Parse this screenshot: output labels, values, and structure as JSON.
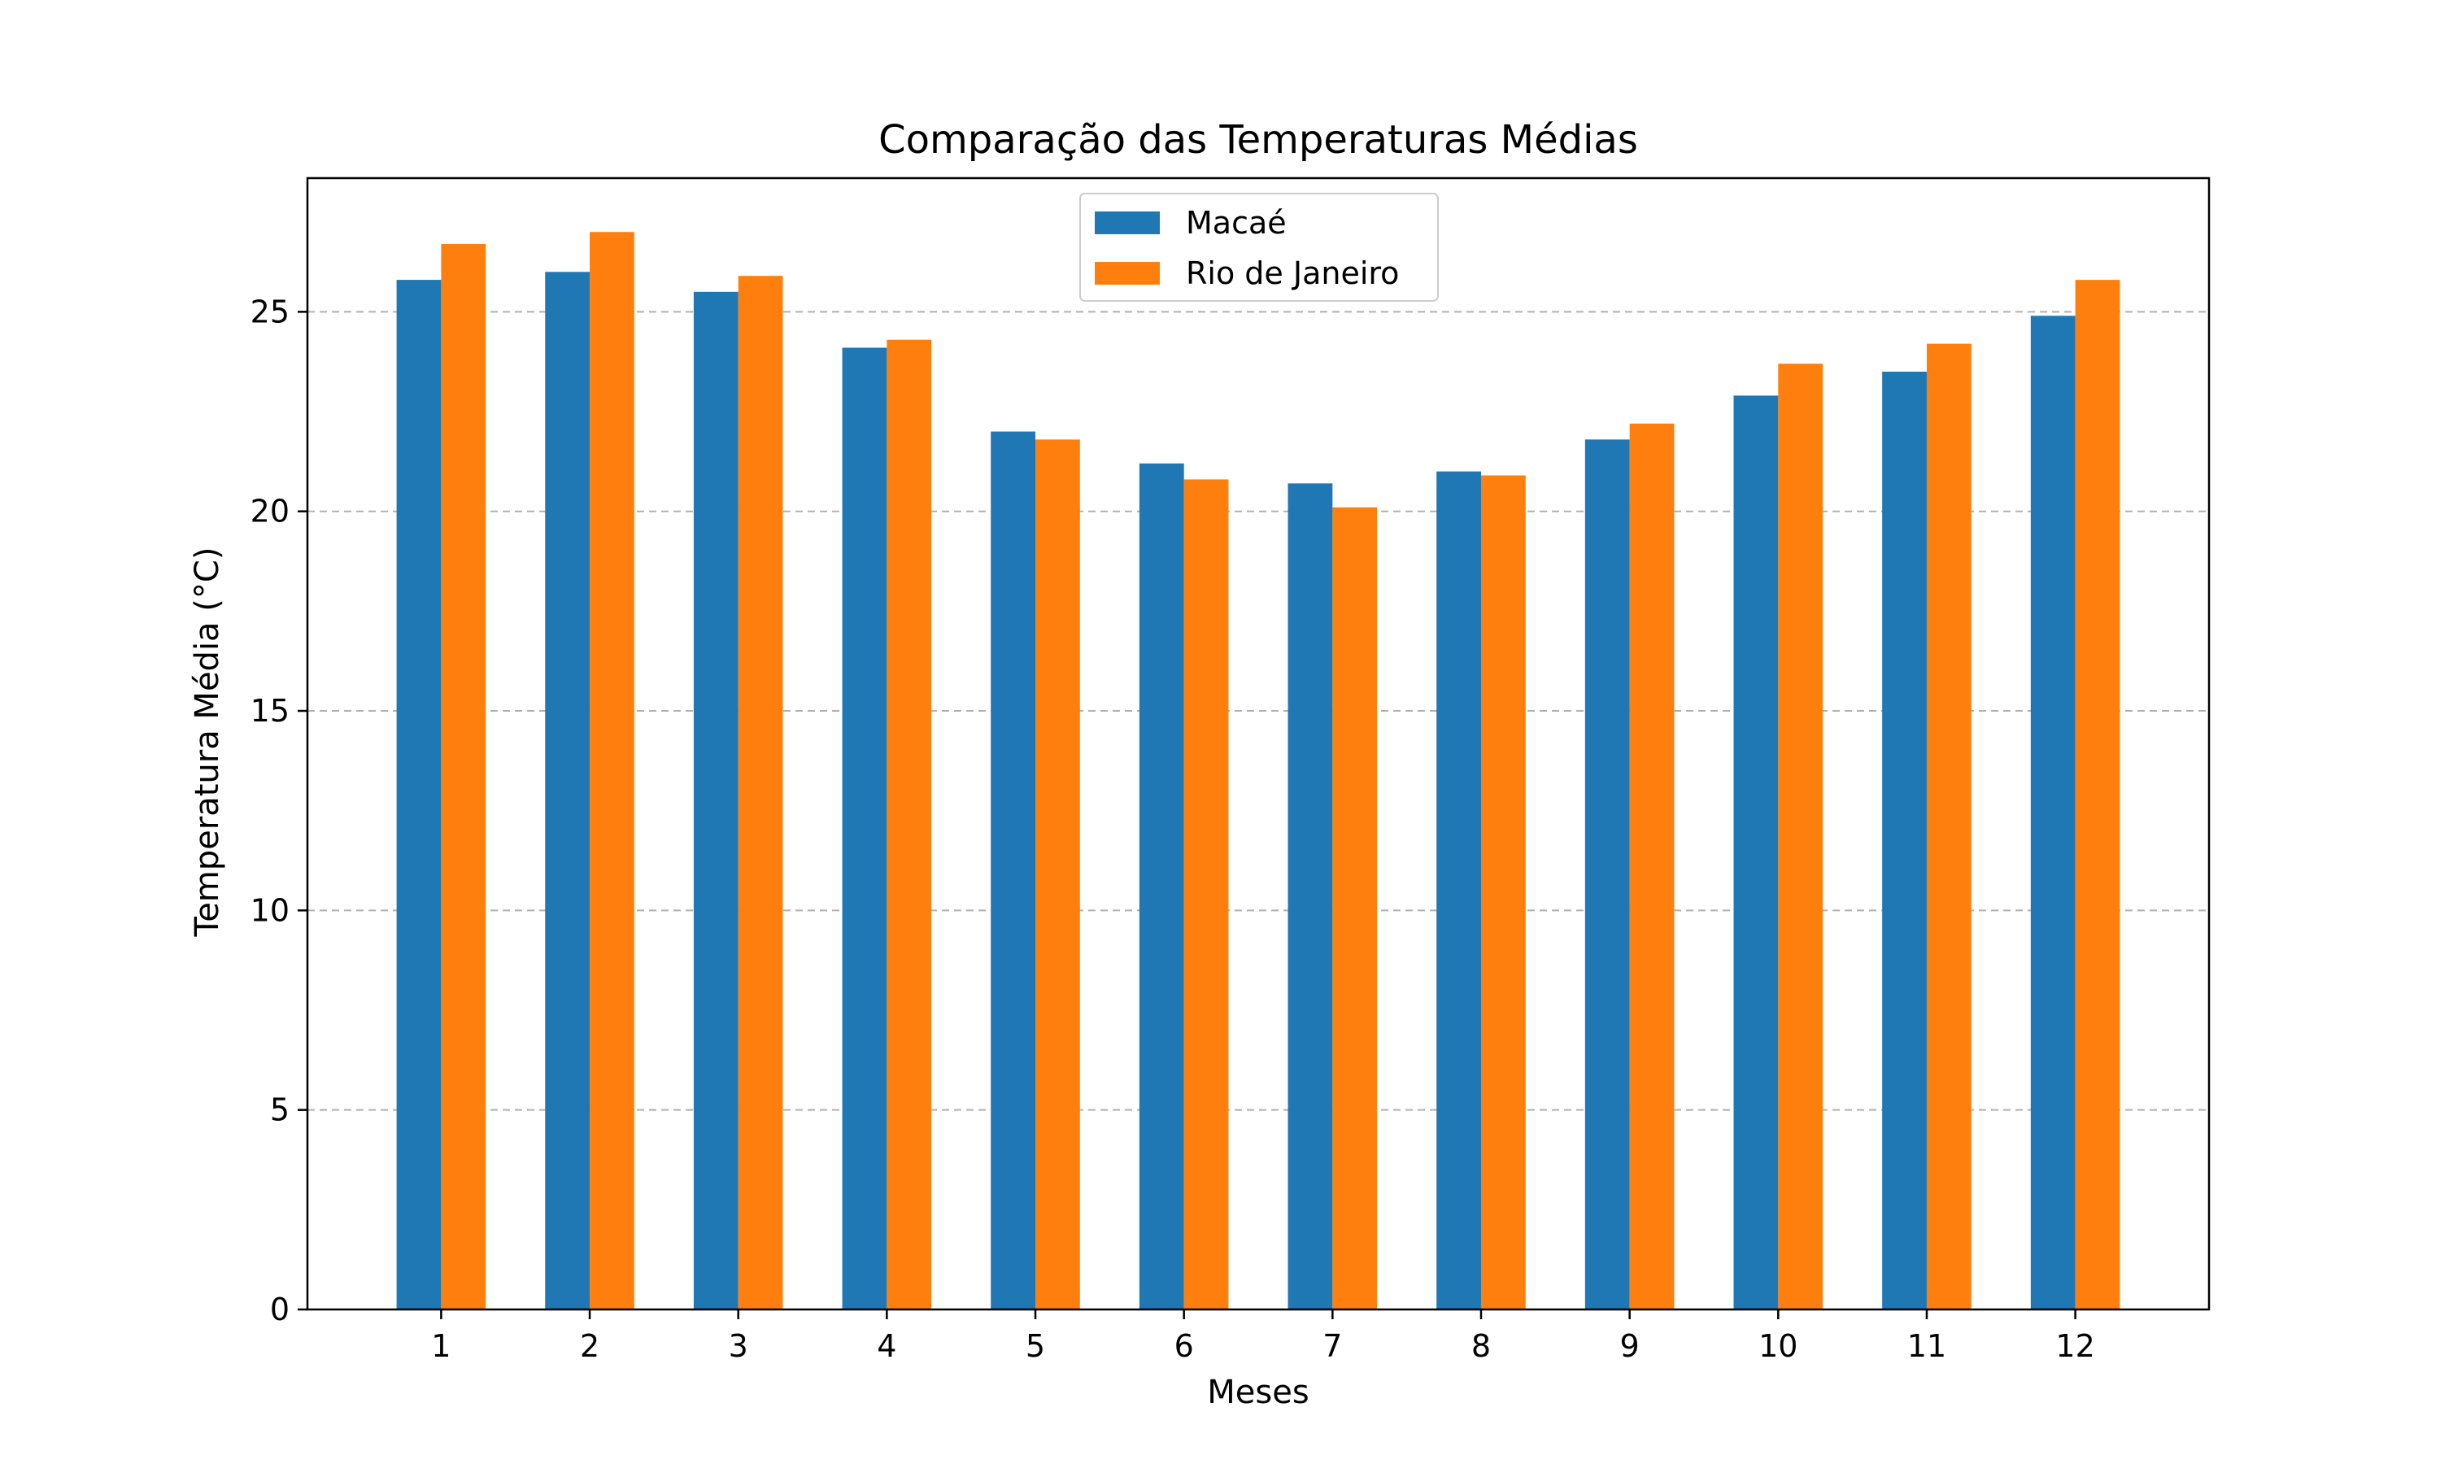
{
  "chart_data": {
    "type": "bar",
    "title": "Comparação das Temperaturas Médias",
    "xlabel": "Meses",
    "ylabel": "Temperatura Média (°C)",
    "categories": [
      "1",
      "2",
      "3",
      "4",
      "5",
      "6",
      "7",
      "8",
      "9",
      "10",
      "11",
      "12"
    ],
    "series": [
      {
        "name": "Macaé",
        "color": "#1f77b4",
        "values": [
          25.8,
          26.0,
          25.5,
          24.1,
          22.0,
          21.2,
          20.7,
          21.0,
          21.8,
          22.9,
          23.5,
          24.9
        ]
      },
      {
        "name": "Rio de Janeiro",
        "color": "#ff7f0e",
        "values": [
          26.7,
          27.0,
          25.9,
          24.3,
          21.8,
          20.8,
          20.1,
          20.9,
          22.2,
          23.7,
          24.2,
          25.8
        ]
      }
    ],
    "ylim": [
      0,
      28.35
    ],
    "yticks": [
      0,
      5,
      10,
      15,
      20,
      25
    ],
    "grid": "y-dashed",
    "legend_position": "top-center"
  }
}
